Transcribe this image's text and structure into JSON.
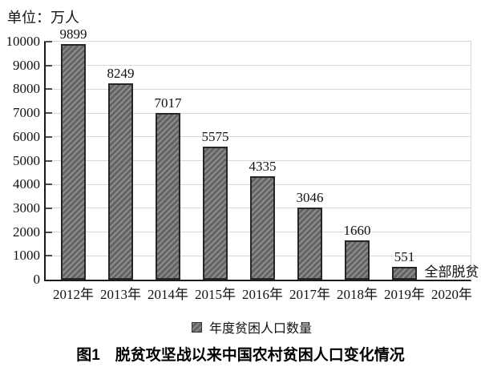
{
  "chart_data": {
    "type": "bar",
    "title": "图1　脱贫攻坚战以来中国农村贫困人口变化情况",
    "unit_label": "单位：万人",
    "categories": [
      "2012年",
      "2013年",
      "2014年",
      "2015年",
      "2016年",
      "2017年",
      "2018年",
      "2019年",
      "2020年"
    ],
    "values": [
      9899,
      8249,
      7017,
      5575,
      4335,
      3046,
      1660,
      551,
      null
    ],
    "annotation": {
      "category": "2020年",
      "text": "全部脱贫"
    },
    "ylim": [
      0,
      10000
    ],
    "ytick_step": 1000,
    "yticks": [
      0,
      1000,
      2000,
      3000,
      4000,
      5000,
      6000,
      7000,
      8000,
      9000,
      10000
    ],
    "legend": [
      "年度贫困人口数量"
    ],
    "legend_position": "bottom",
    "grid": true,
    "colors": {
      "bar_hatch_light": "#8d8d8d",
      "bar_hatch_dark": "#646464",
      "bar_border": "#262626",
      "gridline": "#d8d8d8",
      "axis": "#1b1b1b",
      "text": "#111111"
    }
  }
}
